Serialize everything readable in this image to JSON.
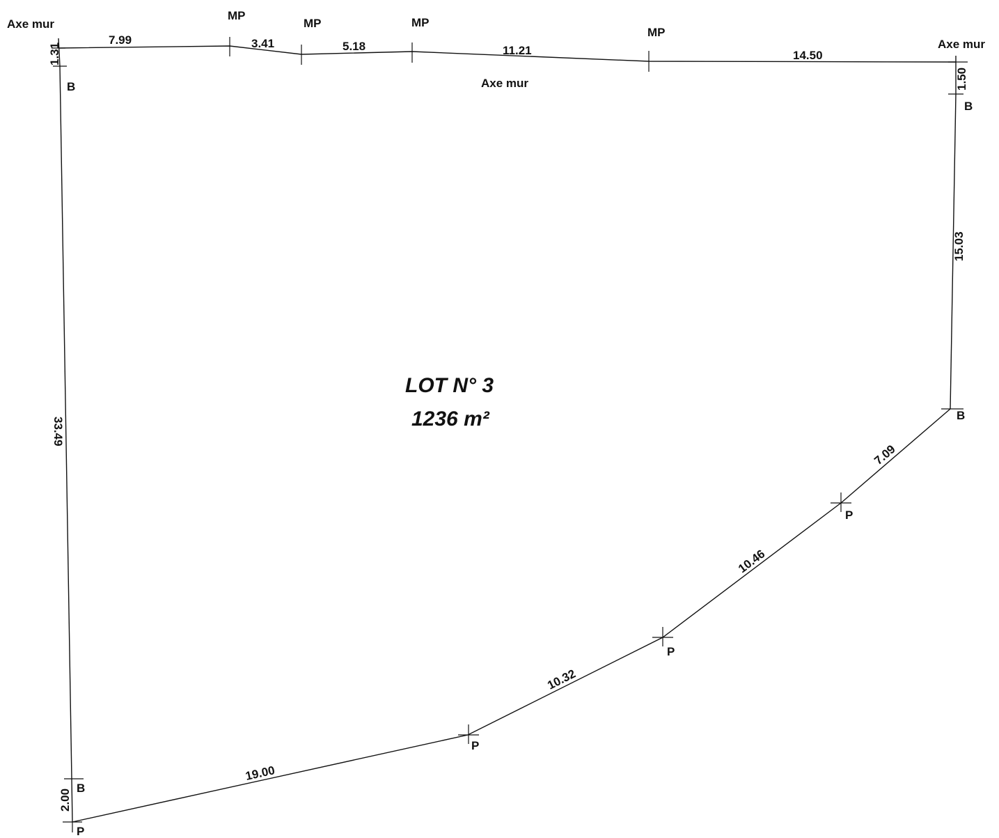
{
  "lot": {
    "title": "LOT N° 3",
    "area": "1236 m²"
  },
  "point_labels": {
    "axe_mur": "Axe mur",
    "mp": "MP",
    "b": "B",
    "p": "P"
  },
  "dimensions": {
    "top_1": "7.99",
    "top_2": "3.41",
    "top_3": "5.18",
    "top_4": "11.21",
    "top_5": "14.50",
    "left_top": "1.31",
    "right_top": "1.50",
    "right_side": "15.03",
    "left_side": "33.49",
    "left_bottom": "2.00",
    "bottom_1": "19.00",
    "bottom_2": "10.32",
    "bottom_3": "10.46",
    "bottom_4": "7.09"
  },
  "colors": {
    "line": "#111111",
    "background": "#ffffff"
  }
}
